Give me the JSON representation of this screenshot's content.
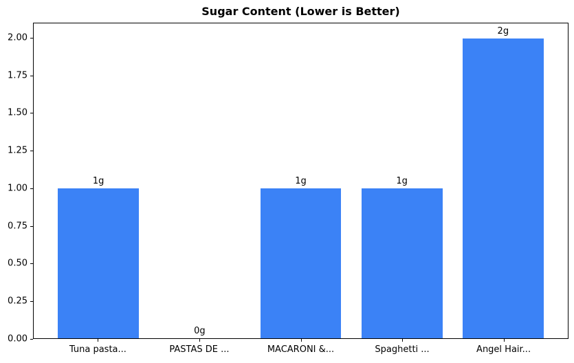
{
  "chart_data": {
    "type": "bar",
    "title": "Sugar Content (Lower is Better)",
    "categories": [
      "Tuna pasta...",
      "PASTAS DE ...",
      "MACARONI &...",
      "Spaghetti ...",
      "Angel Hair..."
    ],
    "values": [
      1,
      0,
      1,
      1,
      2
    ],
    "bar_labels": [
      "1g",
      "0g",
      "1g",
      "1g",
      "2g"
    ],
    "yticks": [
      0,
      0.25,
      0.5,
      0.75,
      1,
      1.25,
      1.5,
      1.75,
      2
    ],
    "ytick_labels": [
      "0.00",
      "0.25",
      "0.50",
      "0.75",
      "1.00",
      "1.25",
      "1.50",
      "1.75",
      "2.00"
    ],
    "ylim": [
      0,
      2.1
    ],
    "xlabel": "",
    "ylabel": "",
    "bar_color": "#3b82f6",
    "axis_color": "#000000",
    "grid": false,
    "legend": null
  }
}
